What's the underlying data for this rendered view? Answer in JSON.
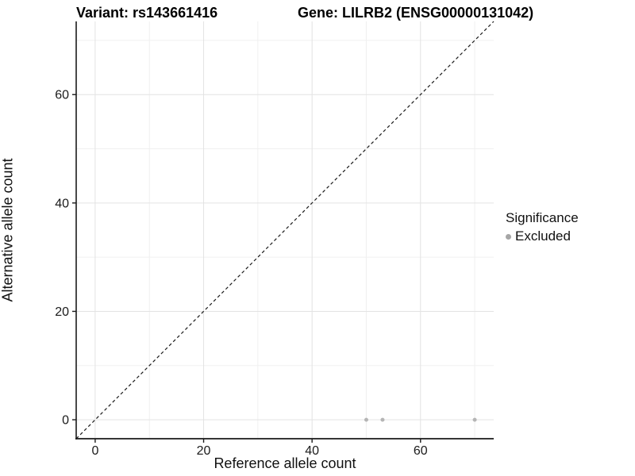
{
  "titles": {
    "variant": "Variant: rs143661416",
    "gene": "Gene: LILRB2 (ENSG00000131042)"
  },
  "chart_data": {
    "type": "scatter",
    "xlabel": "Reference allele count",
    "ylabel": "Alternative allele count",
    "xlim": [
      -3.5,
      73.5
    ],
    "ylim": [
      -3.5,
      73.5
    ],
    "x_ticks": [
      0,
      20,
      40,
      60
    ],
    "y_ticks": [
      0,
      20,
      40,
      60
    ],
    "minor_gridlines": [
      10,
      30,
      50,
      70
    ],
    "grid": true,
    "series": [
      {
        "name": "Excluded",
        "color": "#b5b5b5",
        "points": [
          [
            50,
            0
          ],
          [
            53,
            0
          ],
          [
            70,
            0
          ]
        ]
      }
    ],
    "reference_line": {
      "type": "identity",
      "style": "dashed",
      "color": "#1a1a1a"
    },
    "legend": {
      "title": "Significance",
      "position": "right",
      "items": [
        {
          "label": "Excluded",
          "color": "#a6a6a6"
        }
      ]
    },
    "colors": {
      "background": "#ffffff",
      "grid_major": "#e3e3e3",
      "grid_minor": "#f0f0f0",
      "axis_line": "#1a1a1a",
      "tick_text": "#1a1a1a",
      "point": "#b5b5b5"
    }
  }
}
